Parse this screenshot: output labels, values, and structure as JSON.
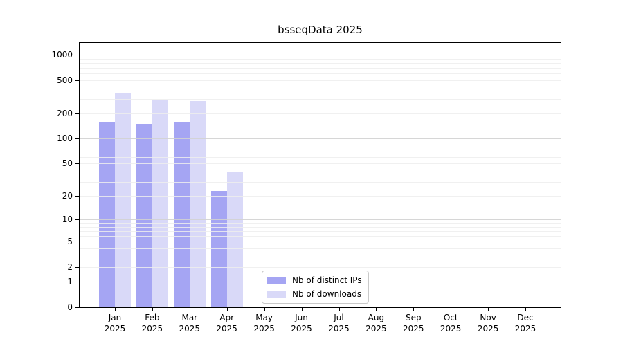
{
  "chart_data": {
    "type": "bar",
    "title": "bsseqData 2025",
    "y_scale": "log10(1+x)",
    "ylim": [
      0,
      1400
    ],
    "grid": {
      "major_color": "#d2d2d2",
      "minor_color": "#ededed",
      "major_values": [
        1,
        10,
        100,
        1000
      ],
      "minor_values": [
        2,
        3,
        4,
        5,
        6,
        7,
        8,
        9,
        20,
        30,
        40,
        50,
        60,
        70,
        80,
        90,
        200,
        300,
        400,
        500,
        600,
        700,
        800,
        900
      ]
    },
    "y_ticks": {
      "values": [
        0,
        1,
        2,
        5,
        10,
        20,
        50,
        100,
        200,
        500,
        1000
      ],
      "labels": [
        "0",
        "1",
        "2",
        "5",
        "10",
        "20",
        "50",
        "100",
        "200",
        "500",
        "1000"
      ]
    },
    "months": [
      "Jan",
      "Feb",
      "Mar",
      "Apr",
      "May",
      "Jun",
      "Jul",
      "Aug",
      "Sep",
      "Oct",
      "Nov",
      "Dec"
    ],
    "year": "2025",
    "series": [
      {
        "key": "distinct-ips",
        "name": "Nb of distinct IPs",
        "color": "#a5a5f3",
        "values": [
          160,
          150,
          156,
          23,
          null,
          null,
          null,
          null,
          null,
          null,
          null,
          null
        ]
      },
      {
        "key": "downloads",
        "name": "Nb of downloads",
        "color": "#d9d9f8",
        "values": [
          345,
          290,
          280,
          40,
          null,
          null,
          null,
          null,
          null,
          null,
          null,
          null
        ]
      }
    ],
    "legend": {
      "position": "lower center"
    }
  }
}
